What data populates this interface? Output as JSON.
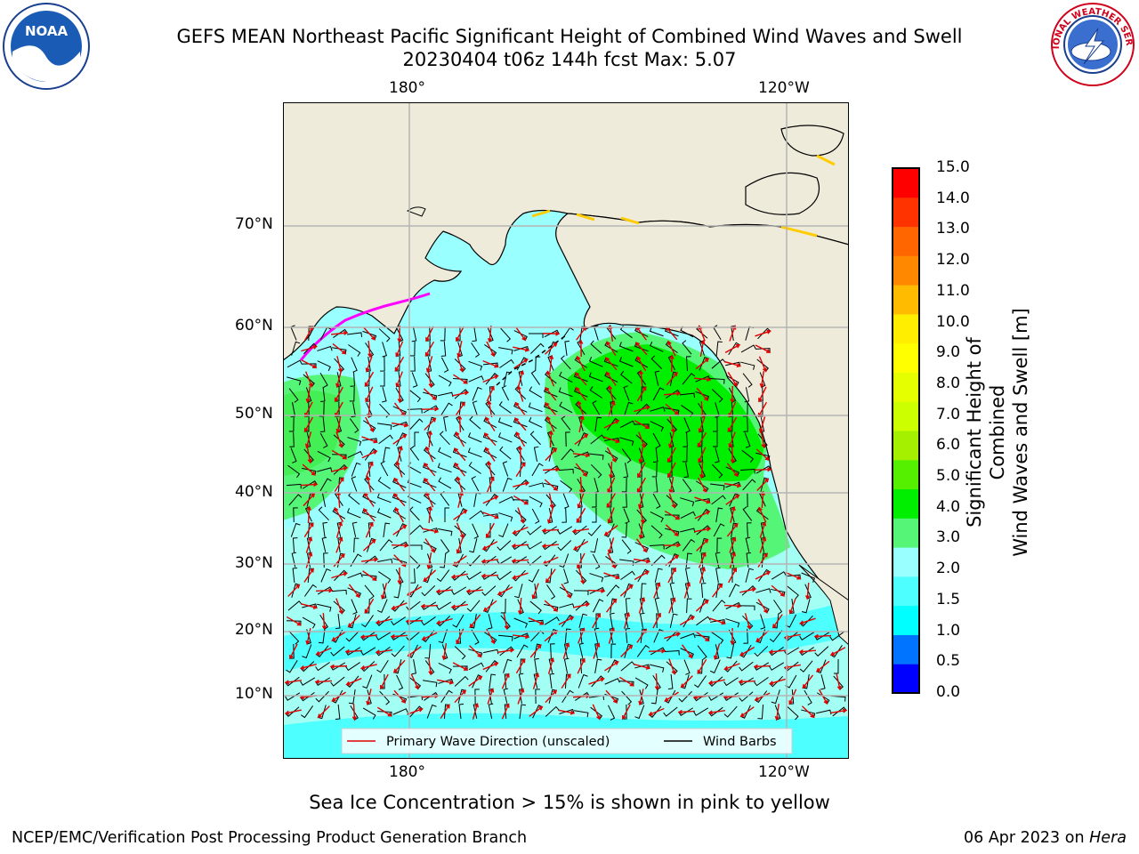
{
  "title": {
    "line1": "GEFS MEAN Northeast Pacific Significant Height of Combined Wind Waves and Swell",
    "line2": "20230404 t06z 144h fcst   Max: 5.07"
  },
  "map": {
    "lon_labels": [
      "180°",
      "120°W"
    ],
    "lat_labels": [
      "70°N",
      "60°N",
      "50°N",
      "40°N",
      "30°N",
      "20°N",
      "10°N"
    ],
    "colors": {
      "land": "#efebda",
      "ocean_low": "#99ffff",
      "ocean_mid": "#4dffff",
      "wave_2_3": "#a3fff4",
      "wave_3_4": "#55f577",
      "wave_4_5": "#00ee00",
      "wave_arrow": "#e00000",
      "wind_barb": "#000000",
      "grid": "#b4b4b4"
    },
    "legend": {
      "wave_label": "Primary Wave Direction (unscaled)",
      "wind_label": "Wind Barbs"
    }
  },
  "colorbar": {
    "label_line1": "Significant Height of Combined",
    "label_line2": "Wind Waves and Swell [m]",
    "ticks": [
      "15.0",
      "14.0",
      "13.0",
      "12.0",
      "11.0",
      "10.0",
      "9.0",
      "8.0",
      "7.0",
      "6.0",
      "5.0",
      "4.0",
      "3.0",
      "2.0",
      "1.5",
      "1.0",
      "0.5",
      "0.0"
    ],
    "colors": [
      "#0000ff",
      "#0073ff",
      "#00ffff",
      "#4dffff",
      "#99ffff",
      "#55f577",
      "#00ee00",
      "#55f000",
      "#a5f000",
      "#ccff00",
      "#e6ff00",
      "#ffff00",
      "#ffee00",
      "#ffbb00",
      "#ff8800",
      "#ff6600",
      "#ff3300",
      "#ff0000"
    ]
  },
  "ice_note": "Sea Ice Concentration > 15% is shown in pink to yellow",
  "footer": {
    "left": "NCEP/EMC/Verification Post Processing Product Generation Branch",
    "date": "06 Apr 2023 on",
    "machine": "Hera"
  },
  "logos": {
    "noaa_text": "NOAA",
    "nws_text": "NATIONAL WEATHER SERVICE"
  }
}
